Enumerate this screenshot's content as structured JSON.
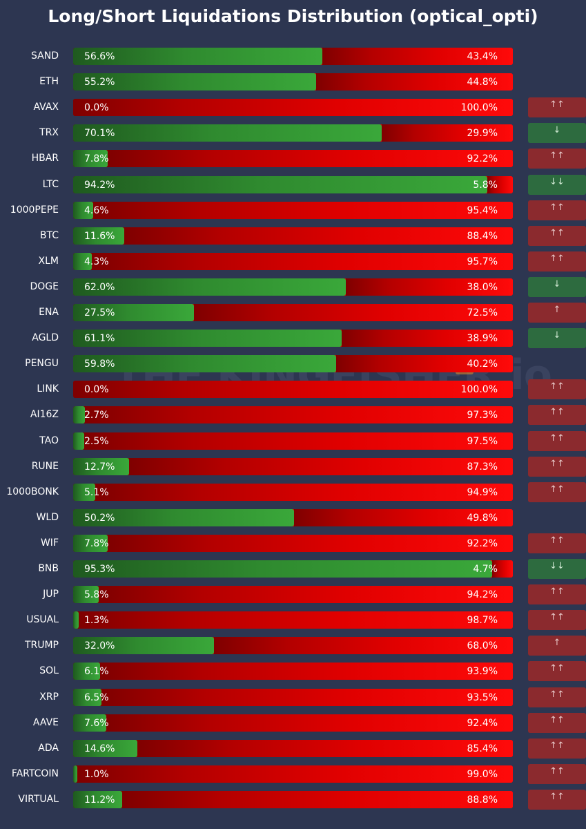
{
  "chart_data": {
    "type": "bar",
    "title": "Long/Short Liquidations Distribution (optical_opti)",
    "orientation": "horizontal",
    "stacked": true,
    "xlim": [
      0,
      100
    ],
    "categories": [
      "SAND",
      "ETH",
      "AVAX",
      "TRX",
      "HBAR",
      "LTC",
      "1000PEPE",
      "BTC",
      "XLM",
      "DOGE",
      "ENA",
      "AGLD",
      "PENGU",
      "LINK",
      "AI16Z",
      "TAO",
      "RUNE",
      "1000BONK",
      "WLD",
      "WIF",
      "BNB",
      "JUP",
      "USUAL",
      "TRUMP",
      "SOL",
      "XRP",
      "AAVE",
      "ADA",
      "FARTCOIN",
      "VIRTUAL"
    ],
    "series": [
      {
        "values": [
          56.6,
          55.2,
          0.0,
          70.1,
          7.8,
          94.2,
          4.6,
          11.6,
          4.3,
          62.0,
          27.5,
          61.1,
          59.8,
          0.0,
          2.7,
          2.5,
          12.7,
          5.1,
          50.2,
          7.8,
          95.3,
          5.8,
          1.3,
          32.0,
          6.1,
          6.5,
          7.6,
          14.6,
          1.0,
          11.2
        ],
        "color": "#3aa83a"
      },
      {
        "values": [
          43.4,
          44.8,
          100.0,
          29.9,
          92.2,
          5.8,
          95.4,
          88.4,
          95.7,
          38.0,
          72.5,
          38.9,
          40.2,
          100.0,
          97.3,
          97.5,
          87.3,
          94.9,
          49.8,
          92.2,
          4.7,
          94.2,
          98.7,
          68.0,
          93.9,
          93.5,
          92.4,
          85.4,
          99.0,
          88.8
        ],
        "color": "#ff0000"
      }
    ],
    "long_labels": [
      "56.6%",
      "55.2%",
      "0.0%",
      "70.1%",
      "7.8%",
      "94.2%",
      "4.6%",
      "11.6%",
      "4.3%",
      "62.0%",
      "27.5%",
      "61.1%",
      "59.8%",
      "0.0%",
      "2.7%",
      "2.5%",
      "12.7%",
      "5.1%",
      "50.2%",
      "7.8%",
      "95.3%",
      "5.8%",
      "1.3%",
      "32.0%",
      "6.1%",
      "6.5%",
      "7.6%",
      "14.6%",
      "1.0%",
      "11.2%"
    ],
    "short_labels": [
      "43.4%",
      "44.8%",
      "100.0%",
      "29.9%",
      "92.2%",
      "5.8%",
      "95.4%",
      "88.4%",
      "95.7%",
      "38.0%",
      "72.5%",
      "38.9%",
      "40.2%",
      "100.0%",
      "97.3%",
      "97.5%",
      "87.3%",
      "94.9%",
      "49.8%",
      "92.2%",
      "4.7%",
      "94.2%",
      "98.7%",
      "68.0%",
      "93.9%",
      "93.5%",
      "92.4%",
      "85.4%",
      "99.0%",
      "88.8%"
    ],
    "signals": [
      "",
      "",
      "↑↑",
      "↓",
      "↑↑",
      "↓↓",
      "↑↑",
      "↑↑",
      "↑↑",
      "↓",
      "↑",
      "↓",
      "",
      "↑↑",
      "↑↑",
      "↑↑",
      "↑↑",
      "↑↑",
      "",
      "↑↑",
      "↓↓",
      "↑↑",
      "↑↑",
      "↑",
      "↑↑",
      "↑↑",
      "↑↑",
      "↑↑",
      "↑↑",
      "↑↑"
    ],
    "signal_colors": {
      "up": "#8b2a2e",
      "down": "#2d6b3f"
    }
  },
  "watermark": "THE KINGFISHER.io",
  "colors": {
    "background": "#2d3651",
    "long": "#3aa83a",
    "short": "#ff0000",
    "text": "#ffffff"
  }
}
